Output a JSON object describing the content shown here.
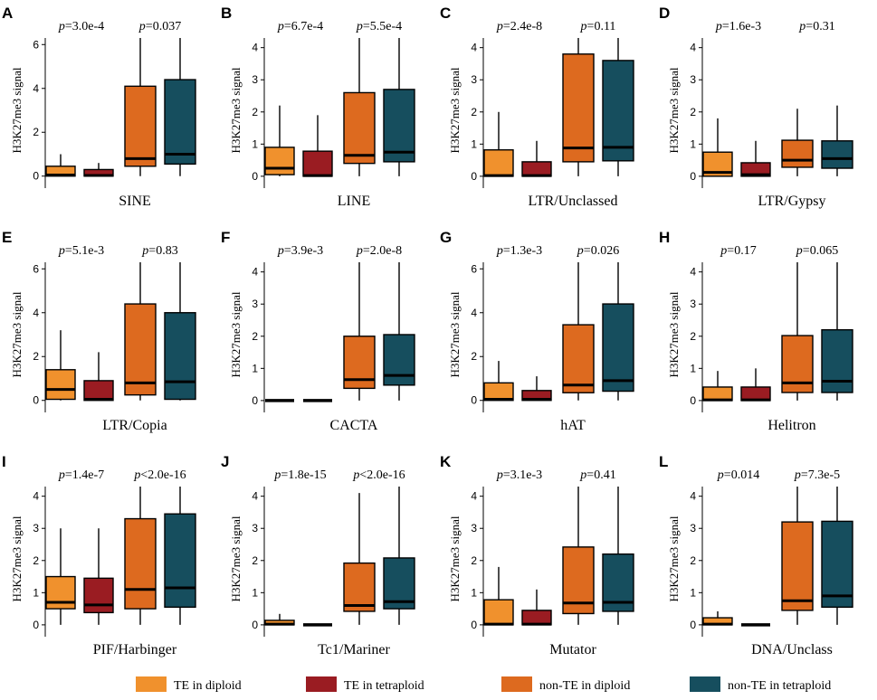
{
  "legend": [
    {
      "label": "TE in diploid",
      "color": "#F0912D"
    },
    {
      "label": "TE in tetraploid",
      "color": "#9A1C22"
    },
    {
      "label": "non-TE in diploid",
      "color": "#DD6A1F"
    },
    {
      "label": "non-TE in tetraploid",
      "color": "#164E5E"
    }
  ],
  "chart_data": [
    {
      "type": "box",
      "panel": "A",
      "xlabel": "SINE",
      "ylabel": "H3K27me3 signal",
      "ylim": [
        -0.3,
        6.3
      ],
      "yticks": [
        0,
        2,
        4,
        6
      ],
      "p_labels": [
        "p=3.0e-4",
        "p=0.037"
      ],
      "boxes": [
        {
          "group": "TE in diploid",
          "whisker_low": 0,
          "q1": 0,
          "median": 0.05,
          "q3": 0.45,
          "whisker_high": 1.0
        },
        {
          "group": "TE in tetraploid",
          "whisker_low": 0,
          "q1": 0,
          "median": 0.03,
          "q3": 0.3,
          "whisker_high": 0.6
        },
        {
          "group": "non-TE in diploid",
          "whisker_low": 0,
          "q1": 0.45,
          "median": 0.8,
          "q3": 4.1,
          "whisker_high": 6.3
        },
        {
          "group": "non-TE in tetraploid",
          "whisker_low": 0,
          "q1": 0.55,
          "median": 1.0,
          "q3": 4.4,
          "whisker_high": 6.3
        }
      ]
    },
    {
      "type": "box",
      "panel": "B",
      "xlabel": "LINE",
      "ylabel": "H3K27me3 signal",
      "ylim": [
        -0.2,
        4.3
      ],
      "yticks": [
        0,
        1,
        2,
        3,
        4
      ],
      "p_labels": [
        "p=6.7e-4",
        "p=5.5e-4"
      ],
      "boxes": [
        {
          "group": "TE in diploid",
          "whisker_low": 0,
          "q1": 0.05,
          "median": 0.25,
          "q3": 0.9,
          "whisker_high": 2.2
        },
        {
          "group": "TE in tetraploid",
          "whisker_low": 0,
          "q1": 0,
          "median": 0.02,
          "q3": 0.78,
          "whisker_high": 1.9
        },
        {
          "group": "non-TE in diploid",
          "whisker_low": 0,
          "q1": 0.4,
          "median": 0.65,
          "q3": 2.6,
          "whisker_high": 4.3
        },
        {
          "group": "non-TE in tetraploid",
          "whisker_low": 0,
          "q1": 0.45,
          "median": 0.75,
          "q3": 2.7,
          "whisker_high": 4.3
        }
      ]
    },
    {
      "type": "box",
      "panel": "C",
      "xlabel": "LTR/Unclassed",
      "ylabel": "H3K27me3 signal",
      "ylim": [
        -0.2,
        4.3
      ],
      "yticks": [
        0,
        1,
        2,
        3,
        4
      ],
      "p_labels": [
        "p=2.4e-8",
        "p=0.11"
      ],
      "boxes": [
        {
          "group": "TE in diploid",
          "whisker_low": 0,
          "q1": 0,
          "median": 0.02,
          "q3": 0.82,
          "whisker_high": 2.0
        },
        {
          "group": "TE in tetraploid",
          "whisker_low": 0,
          "q1": 0,
          "median": 0.02,
          "q3": 0.45,
          "whisker_high": 1.1
        },
        {
          "group": "non-TE in diploid",
          "whisker_low": 0,
          "q1": 0.45,
          "median": 0.88,
          "q3": 3.8,
          "whisker_high": 4.3
        },
        {
          "group": "non-TE in tetraploid",
          "whisker_low": 0,
          "q1": 0.48,
          "median": 0.9,
          "q3": 3.6,
          "whisker_high": 4.3
        }
      ]
    },
    {
      "type": "box",
      "panel": "D",
      "xlabel": "LTR/Gypsy",
      "ylabel": "H3K27me3 signal",
      "ylim": [
        -0.2,
        4.3
      ],
      "yticks": [
        0,
        1,
        2,
        3,
        4
      ],
      "p_labels": [
        "p=1.6e-3",
        "p=0.31"
      ],
      "boxes": [
        {
          "group": "TE in diploid",
          "whisker_low": 0,
          "q1": 0,
          "median": 0.12,
          "q3": 0.75,
          "whisker_high": 1.8
        },
        {
          "group": "TE in tetraploid",
          "whisker_low": 0,
          "q1": 0,
          "median": 0.05,
          "q3": 0.42,
          "whisker_high": 1.1
        },
        {
          "group": "non-TE in diploid",
          "whisker_low": 0,
          "q1": 0.28,
          "median": 0.5,
          "q3": 1.12,
          "whisker_high": 2.1
        },
        {
          "group": "non-TE in tetraploid",
          "whisker_low": 0,
          "q1": 0.25,
          "median": 0.55,
          "q3": 1.1,
          "whisker_high": 2.2
        }
      ]
    },
    {
      "type": "box",
      "panel": "E",
      "xlabel": "LTR/Copia",
      "ylabel": "H3K27me3 signal",
      "ylim": [
        -0.3,
        6.3
      ],
      "yticks": [
        0,
        2,
        4,
        6
      ],
      "p_labels": [
        "p=5.1e-3",
        "p=0.83"
      ],
      "boxes": [
        {
          "group": "TE in diploid",
          "whisker_low": 0,
          "q1": 0.05,
          "median": 0.5,
          "q3": 1.4,
          "whisker_high": 3.2
        },
        {
          "group": "TE in tetraploid",
          "whisker_low": 0,
          "q1": 0,
          "median": 0.05,
          "q3": 0.9,
          "whisker_high": 2.2
        },
        {
          "group": "non-TE in diploid",
          "whisker_low": 0,
          "q1": 0.25,
          "median": 0.8,
          "q3": 4.4,
          "whisker_high": 6.3
        },
        {
          "group": "non-TE in tetraploid",
          "whisker_low": 0,
          "q1": 0.05,
          "median": 0.85,
          "q3": 4.0,
          "whisker_high": 6.3
        }
      ]
    },
    {
      "type": "box",
      "panel": "F",
      "xlabel": "CACTA",
      "ylabel": "H3K27me3 signal",
      "ylim": [
        -0.2,
        4.3
      ],
      "yticks": [
        0,
        1,
        2,
        3,
        4
      ],
      "p_labels": [
        "p=3.9e-3",
        "p=2.0e-8"
      ],
      "boxes": [
        {
          "group": "TE in diploid",
          "whisker_low": 0,
          "q1": 0,
          "median": 0,
          "q3": 0,
          "whisker_high": 0
        },
        {
          "group": "TE in tetraploid",
          "whisker_low": 0,
          "q1": 0,
          "median": 0,
          "q3": 0,
          "whisker_high": 0
        },
        {
          "group": "non-TE in diploid",
          "whisker_low": 0,
          "q1": 0.38,
          "median": 0.65,
          "q3": 2.0,
          "whisker_high": 4.3
        },
        {
          "group": "non-TE in tetraploid",
          "whisker_low": 0,
          "q1": 0.48,
          "median": 0.78,
          "q3": 2.05,
          "whisker_high": 4.3
        }
      ]
    },
    {
      "type": "box",
      "panel": "G",
      "xlabel": "hAT",
      "ylabel": "H3K27me3 signal",
      "ylim": [
        -0.3,
        6.3
      ],
      "yticks": [
        0,
        2,
        4,
        6
      ],
      "p_labels": [
        "p=1.3e-3",
        "p=0.026"
      ],
      "boxes": [
        {
          "group": "TE in diploid",
          "whisker_low": 0,
          "q1": 0,
          "median": 0.05,
          "q3": 0.8,
          "whisker_high": 1.8
        },
        {
          "group": "TE in tetraploid",
          "whisker_low": 0,
          "q1": 0,
          "median": 0.05,
          "q3": 0.45,
          "whisker_high": 1.1
        },
        {
          "group": "non-TE in diploid",
          "whisker_low": 0,
          "q1": 0.35,
          "median": 0.7,
          "q3": 3.45,
          "whisker_high": 6.3
        },
        {
          "group": "non-TE in tetraploid",
          "whisker_low": 0,
          "q1": 0.42,
          "median": 0.9,
          "q3": 4.4,
          "whisker_high": 6.3
        }
      ]
    },
    {
      "type": "box",
      "panel": "H",
      "xlabel": "Helitron",
      "ylabel": "H3K27me3 signal",
      "ylim": [
        -0.2,
        4.3
      ],
      "yticks": [
        0,
        1,
        2,
        3,
        4
      ],
      "p_labels": [
        "p=0.17",
        "p=0.065"
      ],
      "boxes": [
        {
          "group": "TE in diploid",
          "whisker_low": 0,
          "q1": 0,
          "median": 0.02,
          "q3": 0.42,
          "whisker_high": 0.92
        },
        {
          "group": "TE in tetraploid",
          "whisker_low": 0,
          "q1": 0,
          "median": 0.02,
          "q3": 0.42,
          "whisker_high": 1.0
        },
        {
          "group": "non-TE in diploid",
          "whisker_low": 0,
          "q1": 0.25,
          "median": 0.55,
          "q3": 2.02,
          "whisker_high": 4.3
        },
        {
          "group": "non-TE in tetraploid",
          "whisker_low": 0,
          "q1": 0.25,
          "median": 0.6,
          "q3": 2.2,
          "whisker_high": 4.3
        }
      ]
    },
    {
      "type": "box",
      "panel": "I",
      "xlabel": "PIF/Harbinger",
      "ylabel": "H3K27me3 signal",
      "ylim": [
        -0.2,
        4.3
      ],
      "yticks": [
        0,
        1,
        2,
        3,
        4
      ],
      "p_labels": [
        "p=1.4e-7",
        "p<2.0e-16"
      ],
      "boxes": [
        {
          "group": "TE in diploid",
          "whisker_low": 0,
          "q1": 0.5,
          "median": 0.7,
          "q3": 1.5,
          "whisker_high": 3.0
        },
        {
          "group": "TE in tetraploid",
          "whisker_low": 0,
          "q1": 0.38,
          "median": 0.62,
          "q3": 1.45,
          "whisker_high": 3.0
        },
        {
          "group": "non-TE in diploid",
          "whisker_low": 0,
          "q1": 0.5,
          "median": 1.1,
          "q3": 3.3,
          "whisker_high": 4.3
        },
        {
          "group": "non-TE in tetraploid",
          "whisker_low": 0,
          "q1": 0.55,
          "median": 1.15,
          "q3": 3.45,
          "whisker_high": 4.3
        }
      ]
    },
    {
      "type": "box",
      "panel": "J",
      "xlabel": "Tc1/Mariner",
      "ylabel": "H3K27me3 signal",
      "ylim": [
        -0.2,
        4.3
      ],
      "yticks": [
        0,
        1,
        2,
        3,
        4
      ],
      "p_labels": [
        "p=1.8e-15",
        "p<2.0e-16"
      ],
      "boxes": [
        {
          "group": "TE in diploid",
          "whisker_low": 0,
          "q1": 0,
          "median": 0.02,
          "q3": 0.14,
          "whisker_high": 0.34
        },
        {
          "group": "TE in tetraploid",
          "whisker_low": 0,
          "q1": 0,
          "median": 0,
          "q3": 0,
          "whisker_high": 0
        },
        {
          "group": "non-TE in diploid",
          "whisker_low": 0,
          "q1": 0.42,
          "median": 0.6,
          "q3": 1.92,
          "whisker_high": 4.1
        },
        {
          "group": "non-TE in tetraploid",
          "whisker_low": 0,
          "q1": 0.5,
          "median": 0.72,
          "q3": 2.08,
          "whisker_high": 4.3
        }
      ]
    },
    {
      "type": "box",
      "panel": "K",
      "xlabel": "Mutator",
      "ylabel": "H3K27me3 signal",
      "ylim": [
        -0.2,
        4.3
      ],
      "yticks": [
        0,
        1,
        2,
        3,
        4
      ],
      "p_labels": [
        "p=3.1e-3",
        "p=0.41"
      ],
      "boxes": [
        {
          "group": "TE in diploid",
          "whisker_low": 0,
          "q1": 0,
          "median": 0.02,
          "q3": 0.78,
          "whisker_high": 1.8
        },
        {
          "group": "TE in tetraploid",
          "whisker_low": 0,
          "q1": 0,
          "median": 0.02,
          "q3": 0.45,
          "whisker_high": 1.1
        },
        {
          "group": "non-TE in diploid",
          "whisker_low": 0,
          "q1": 0.35,
          "median": 0.68,
          "q3": 2.42,
          "whisker_high": 4.3
        },
        {
          "group": "non-TE in tetraploid",
          "whisker_low": 0,
          "q1": 0.42,
          "median": 0.7,
          "q3": 2.2,
          "whisker_high": 4.3
        }
      ]
    },
    {
      "type": "box",
      "panel": "L",
      "xlabel": "DNA/Unclass",
      "ylabel": "H3K27me3 signal",
      "ylim": [
        -0.2,
        4.3
      ],
      "yticks": [
        0,
        1,
        2,
        3,
        4
      ],
      "p_labels": [
        "p=0.014",
        "p=7.3e-5"
      ],
      "boxes": [
        {
          "group": "TE in diploid",
          "whisker_low": 0,
          "q1": 0,
          "median": 0.02,
          "q3": 0.22,
          "whisker_high": 0.42
        },
        {
          "group": "TE in tetraploid",
          "whisker_low": 0,
          "q1": 0,
          "median": 0,
          "q3": 0,
          "whisker_high": 0
        },
        {
          "group": "non-TE in diploid",
          "whisker_low": 0,
          "q1": 0.45,
          "median": 0.75,
          "q3": 3.2,
          "whisker_high": 4.3
        },
        {
          "group": "non-TE in tetraploid",
          "whisker_low": 0,
          "q1": 0.55,
          "median": 0.9,
          "q3": 3.22,
          "whisker_high": 4.3
        }
      ]
    }
  ]
}
